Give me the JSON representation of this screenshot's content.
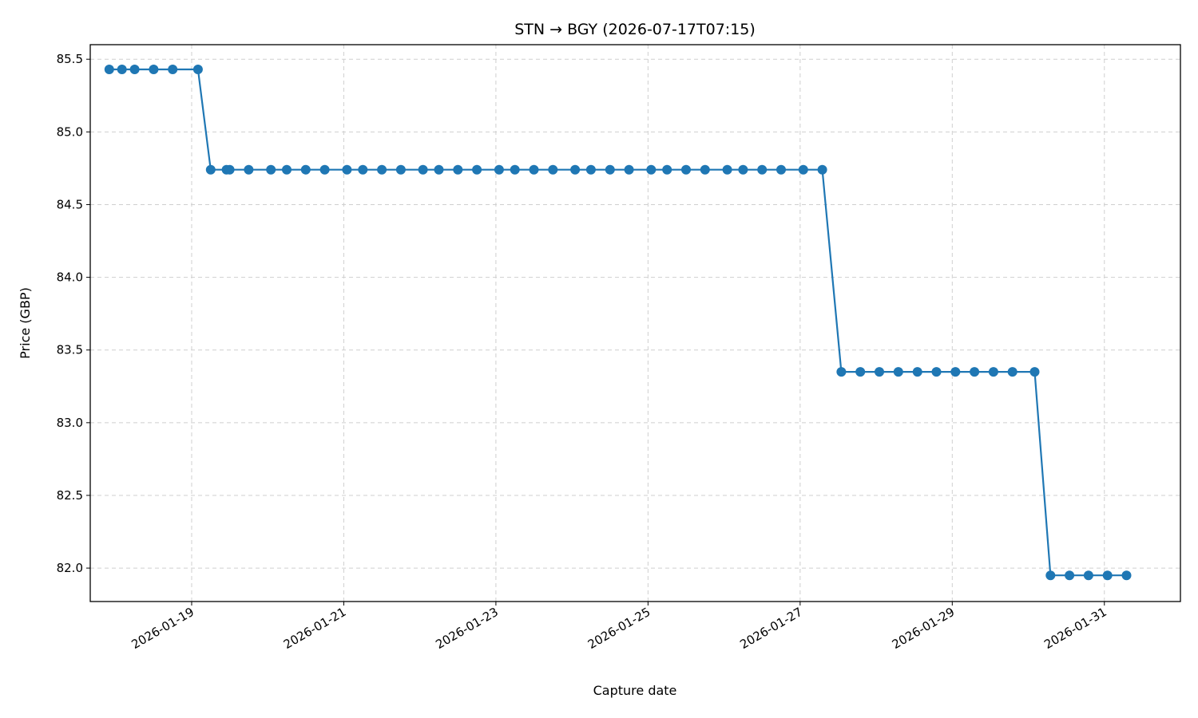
{
  "chart_data": {
    "type": "line",
    "title": "STN → BGY (2026-07-17T07:15)",
    "xlabel": "Capture date",
    "ylabel": "Price (GBP)",
    "grid": true,
    "legend": "none",
    "line_color": "#1f77b4",
    "xlim": [
      "2026-01-17T16:00",
      "2026-02-01T00:00"
    ],
    "ylim": [
      81.77,
      85.6
    ],
    "x_ticks": [
      "2026-01-19",
      "2026-01-21",
      "2026-01-23",
      "2026-01-25",
      "2026-01-27",
      "2026-01-29",
      "2026-01-31"
    ],
    "y_ticks": [
      {
        "value": 82.0,
        "label": "82.0"
      },
      {
        "value": 82.5,
        "label": "82.5"
      },
      {
        "value": 83.0,
        "label": "83.0"
      },
      {
        "value": 83.5,
        "label": "83.5"
      },
      {
        "value": 84.0,
        "label": "84.0"
      },
      {
        "value": 84.5,
        "label": "84.5"
      },
      {
        "value": 85.0,
        "label": "85.0"
      },
      {
        "value": 85.5,
        "label": "85.5"
      }
    ],
    "series": [
      {
        "x": [
          "2026-01-17T22:00",
          "2026-01-18T02:00",
          "2026-01-18T06:00",
          "2026-01-18T12:00",
          "2026-01-18T18:00",
          "2026-01-19T02:00",
          "2026-01-19T06:00",
          "2026-01-19T11:00",
          "2026-01-19T12:00",
          "2026-01-19T18:00",
          "2026-01-20T01:00",
          "2026-01-20T06:00",
          "2026-01-20T12:00",
          "2026-01-20T18:00",
          "2026-01-21T01:00",
          "2026-01-21T06:00",
          "2026-01-21T12:00",
          "2026-01-21T18:00",
          "2026-01-22T01:00",
          "2026-01-22T06:00",
          "2026-01-22T12:00",
          "2026-01-22T18:00",
          "2026-01-23T01:00",
          "2026-01-23T06:00",
          "2026-01-23T12:00",
          "2026-01-23T18:00",
          "2026-01-24T01:00",
          "2026-01-24T06:00",
          "2026-01-24T12:00",
          "2026-01-24T18:00",
          "2026-01-25T01:00",
          "2026-01-25T06:00",
          "2026-01-25T12:00",
          "2026-01-25T18:00",
          "2026-01-26T01:00",
          "2026-01-26T06:00",
          "2026-01-26T12:00",
          "2026-01-26T18:00",
          "2026-01-27T01:00",
          "2026-01-27T07:00",
          "2026-01-27T13:00",
          "2026-01-27T19:00",
          "2026-01-28T01:00",
          "2026-01-28T07:00",
          "2026-01-28T13:00",
          "2026-01-28T19:00",
          "2026-01-29T01:00",
          "2026-01-29T07:00",
          "2026-01-29T13:00",
          "2026-01-29T19:00",
          "2026-01-30T02:00",
          "2026-01-30T07:00",
          "2026-01-30T13:00",
          "2026-01-30T19:00",
          "2026-01-31T01:00",
          "2026-01-31T07:00"
        ],
        "y": [
          85.43,
          85.43,
          85.43,
          85.43,
          85.43,
          85.43,
          84.74,
          84.74,
          84.74,
          84.74,
          84.74,
          84.74,
          84.74,
          84.74,
          84.74,
          84.74,
          84.74,
          84.74,
          84.74,
          84.74,
          84.74,
          84.74,
          84.74,
          84.74,
          84.74,
          84.74,
          84.74,
          84.74,
          84.74,
          84.74,
          84.74,
          84.74,
          84.74,
          84.74,
          84.74,
          84.74,
          84.74,
          84.74,
          84.74,
          84.74,
          83.35,
          83.35,
          83.35,
          83.35,
          83.35,
          83.35,
          83.35,
          83.35,
          83.35,
          83.35,
          83.35,
          81.95,
          81.95,
          81.95,
          81.95,
          81.95
        ]
      }
    ]
  }
}
